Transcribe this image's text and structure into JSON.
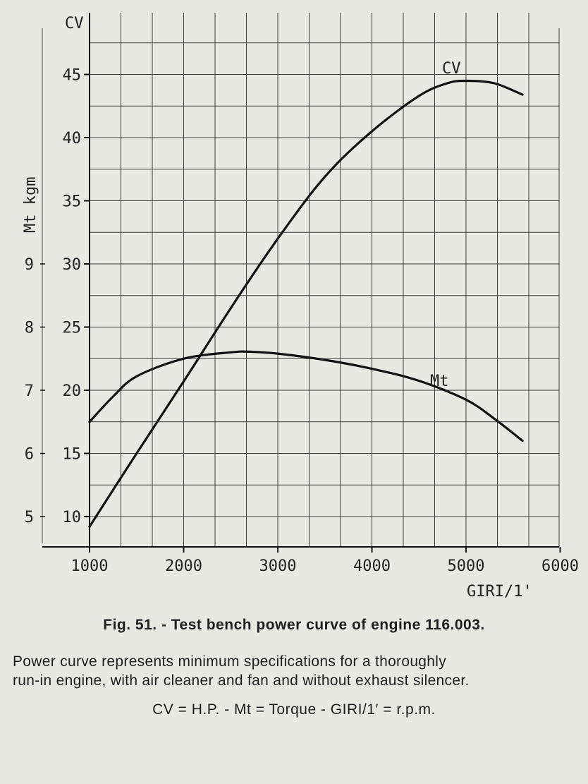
{
  "chart_data": {
    "type": "line",
    "title": "",
    "xlabel": "GIRI/1'",
    "ylabel_left_outer": "Mt kgm",
    "ylabel_left_inner": "CV",
    "x_ticks": [
      "1000",
      "2000",
      "3000",
      "4000",
      "5000",
      "6000"
    ],
    "xlim": [
      1000,
      6000
    ],
    "cv_ticks": [
      "10",
      "15",
      "20",
      "25",
      "30",
      "35",
      "40",
      "45"
    ],
    "cv_lim": [
      8,
      50
    ],
    "mt_ticks": [
      "5",
      "6",
      "7",
      "8",
      "9"
    ],
    "mt_lim": [
      4.76,
      9.43
    ],
    "grid": true,
    "series": [
      {
        "name": "CV",
        "axis": "cv",
        "x": [
          1000,
          1500,
          2000,
          2500,
          3000,
          3500,
          4000,
          4500,
          4800,
          5000,
          5300,
          5600
        ],
        "y": [
          9.2,
          15,
          20.7,
          26.5,
          32,
          36.9,
          40.5,
          43.3,
          44.3,
          44.5,
          44.3,
          43.4
        ]
      },
      {
        "name": "Mt",
        "axis": "mt",
        "x": [
          1000,
          1250,
          1500,
          2000,
          2500,
          2700,
          3000,
          3500,
          4000,
          4500,
          5000,
          5300,
          5600
        ],
        "y": [
          6.5,
          6.9,
          7.22,
          7.5,
          7.6,
          7.61,
          7.58,
          7.48,
          7.34,
          7.15,
          6.85,
          6.55,
          6.2
        ]
      }
    ]
  },
  "caption": "Fig. 51. - Test bench power curve of engine 116.003.",
  "note_line1": "Power curve represents minimum specifications for a thoroughly",
  "note_line2": "run-in engine, with air cleaner and fan and without exhaust silencer.",
  "legend_line": "CV = H.P. - Mt = Torque - GIRI/1′ = r.p.m."
}
